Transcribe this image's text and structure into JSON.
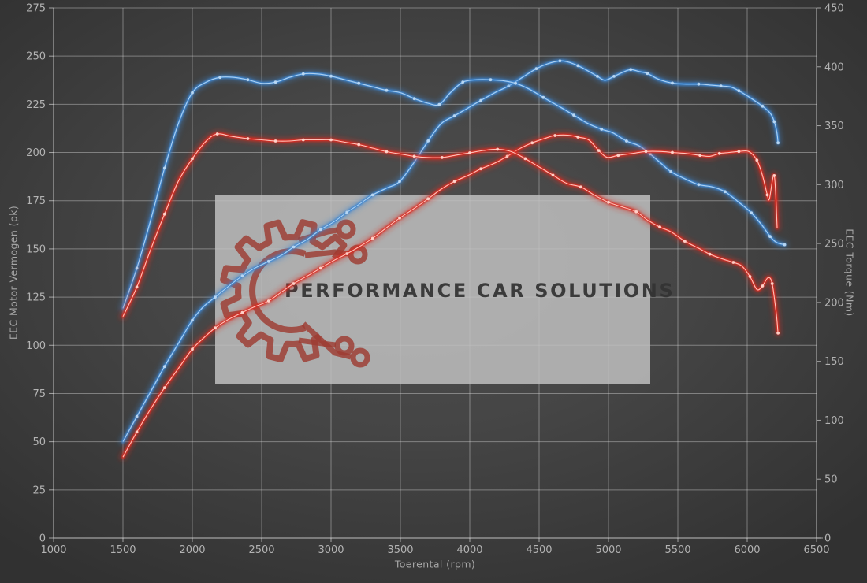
{
  "watermark": {
    "text": "PERFORMANCE CAR SOLUTIONS"
  },
  "colors": {
    "background_center": "#4f4f4f",
    "background_edge": "#313131",
    "grid": "rgba(220,220,220,0.42)",
    "axis_line": "rgba(230,230,230,0.62)",
    "tick_text": "#b3b3b3",
    "axis_title_text": "#a7a7a7",
    "blue_main": "#3d86cf",
    "blue_core": "#b9d8f4",
    "blue_glow": "#2e77c2",
    "red_main": "#d92c22",
    "red_core": "#ffd4cb",
    "red_glow": "#c32018",
    "watermark_bg": "rgba(193,193,193,0.84)",
    "watermark_text": "rgba(51,51,51,0.93)",
    "gear": "rgba(158,60,50,0.82)"
  },
  "chart_data": {
    "type": "line",
    "title": "",
    "grid": true,
    "legend_position": "none",
    "x_axis": {
      "label": "Toerental (rpm)",
      "min": 1000,
      "max": 6500,
      "ticks": [
        1000,
        1500,
        2000,
        2500,
        3000,
        3500,
        4000,
        4500,
        5000,
        5500,
        6000,
        6500
      ]
    },
    "y_left": {
      "label": "EEC Motor Vermogen (pk)",
      "min": 0,
      "max": 275,
      "ticks": [
        0,
        25,
        50,
        75,
        100,
        125,
        150,
        175,
        200,
        225,
        250,
        275
      ]
    },
    "y_right": {
      "label": "EEC Torque (Nm)",
      "min": 0,
      "max": 450,
      "ticks": [
        0,
        50,
        100,
        150,
        200,
        250,
        300,
        350,
        400,
        450
      ]
    },
    "series": [
      {
        "name": "power-blue",
        "axis": "left",
        "unit": "pk",
        "color": "#3d86cf",
        "core": "#b9d8f4",
        "points": [
          [
            1500,
            50
          ],
          [
            1600,
            63
          ],
          [
            1700,
            76
          ],
          [
            1800,
            89
          ],
          [
            1900,
            101
          ],
          [
            2000,
            113
          ],
          [
            2080,
            120
          ],
          [
            2165,
            125
          ],
          [
            2250,
            130
          ],
          [
            2360,
            136
          ],
          [
            2450,
            140
          ],
          [
            2550,
            143.5
          ],
          [
            2650,
            147
          ],
          [
            2730,
            151
          ],
          [
            2830,
            155
          ],
          [
            2925,
            160
          ],
          [
            3020,
            164
          ],
          [
            3115,
            169
          ],
          [
            3200,
            173
          ],
          [
            3300,
            178
          ],
          [
            3400,
            181.5
          ],
          [
            3495,
            185
          ],
          [
            3600,
            195
          ],
          [
            3700,
            206
          ],
          [
            3795,
            215
          ],
          [
            3890,
            219
          ],
          [
            3985,
            223
          ],
          [
            4080,
            227
          ],
          [
            4180,
            231
          ],
          [
            4280,
            234.5
          ],
          [
            4380,
            239
          ],
          [
            4480,
            243.5
          ],
          [
            4560,
            246
          ],
          [
            4650,
            247.5
          ],
          [
            4705,
            247
          ],
          [
            4780,
            245
          ],
          [
            4860,
            242
          ],
          [
            4920,
            239.5
          ],
          [
            4975,
            237.5
          ],
          [
            5040,
            239.5
          ],
          [
            5100,
            241.5
          ],
          [
            5160,
            243
          ],
          [
            5220,
            242
          ],
          [
            5280,
            241
          ],
          [
            5360,
            238
          ],
          [
            5460,
            236
          ],
          [
            5560,
            235.5
          ],
          [
            5650,
            235.5
          ],
          [
            5730,
            235
          ],
          [
            5810,
            234.5
          ],
          [
            5880,
            234
          ],
          [
            5940,
            232
          ],
          [
            6030,
            228
          ],
          [
            6110,
            224
          ],
          [
            6165,
            220.5
          ],
          [
            6195,
            216
          ],
          [
            6215,
            210
          ],
          [
            6222,
            205
          ]
        ]
      },
      {
        "name": "torque-blue",
        "axis": "right",
        "unit": "Nm",
        "color": "#3d86cf",
        "core": "#b9d8f4",
        "points": [
          [
            1500,
            195
          ],
          [
            1600,
            229
          ],
          [
            1700,
            270
          ],
          [
            1800,
            314
          ],
          [
            1900,
            352
          ],
          [
            2000,
            378
          ],
          [
            2100,
            387
          ],
          [
            2200,
            391
          ],
          [
            2300,
            391
          ],
          [
            2400,
            389
          ],
          [
            2500,
            386
          ],
          [
            2600,
            387
          ],
          [
            2700,
            391
          ],
          [
            2800,
            394
          ],
          [
            2900,
            394
          ],
          [
            3000,
            392
          ],
          [
            3100,
            389
          ],
          [
            3200,
            386
          ],
          [
            3300,
            383
          ],
          [
            3400,
            380
          ],
          [
            3500,
            378
          ],
          [
            3600,
            373
          ],
          [
            3700,
            369
          ],
          [
            3780,
            368
          ],
          [
            3860,
            378
          ],
          [
            3950,
            387
          ],
          [
            4050,
            389
          ],
          [
            4150,
            389
          ],
          [
            4250,
            388
          ],
          [
            4330,
            386
          ],
          [
            4430,
            381
          ],
          [
            4530,
            374
          ],
          [
            4650,
            366
          ],
          [
            4750,
            359
          ],
          [
            4850,
            352
          ],
          [
            4950,
            347
          ],
          [
            5030,
            344
          ],
          [
            5130,
            337
          ],
          [
            5220,
            333
          ],
          [
            5300,
            326
          ],
          [
            5380,
            318
          ],
          [
            5450,
            311
          ],
          [
            5550,
            305
          ],
          [
            5650,
            300
          ],
          [
            5750,
            298
          ],
          [
            5840,
            294
          ],
          [
            5940,
            285
          ],
          [
            6030,
            276
          ],
          [
            6110,
            265
          ],
          [
            6165,
            256
          ],
          [
            6210,
            251
          ],
          [
            6270,
            249
          ]
        ]
      },
      {
        "name": "power-red",
        "axis": "left",
        "unit": "pk",
        "color": "#d92c22",
        "core": "#ffd4cb",
        "points": [
          [
            1500,
            42
          ],
          [
            1600,
            55
          ],
          [
            1700,
            67
          ],
          [
            1800,
            78
          ],
          [
            1900,
            88
          ],
          [
            2000,
            98
          ],
          [
            2100,
            105
          ],
          [
            2165,
            109
          ],
          [
            2250,
            113
          ],
          [
            2360,
            117
          ],
          [
            2450,
            120
          ],
          [
            2550,
            123
          ],
          [
            2650,
            128
          ],
          [
            2730,
            132
          ],
          [
            2830,
            136
          ],
          [
            2925,
            140
          ],
          [
            3020,
            144
          ],
          [
            3115,
            147.5
          ],
          [
            3200,
            151
          ],
          [
            3300,
            155.5
          ],
          [
            3400,
            161
          ],
          [
            3495,
            166
          ],
          [
            3600,
            171
          ],
          [
            3700,
            176
          ],
          [
            3795,
            181
          ],
          [
            3890,
            185
          ],
          [
            3985,
            188
          ],
          [
            4080,
            191.5
          ],
          [
            4180,
            194.5
          ],
          [
            4270,
            198
          ],
          [
            4360,
            202
          ],
          [
            4450,
            205
          ],
          [
            4550,
            207.5
          ],
          [
            4615,
            208.8
          ],
          [
            4705,
            209
          ],
          [
            4780,
            208
          ],
          [
            4858,
            206.5
          ],
          [
            4930,
            201
          ],
          [
            4990,
            197.5
          ],
          [
            5070,
            198.5
          ],
          [
            5170,
            199.5
          ],
          [
            5270,
            200.5
          ],
          [
            5380,
            200.5
          ],
          [
            5460,
            200
          ],
          [
            5560,
            199.5
          ],
          [
            5660,
            198.5
          ],
          [
            5730,
            198
          ],
          [
            5800,
            199.5
          ],
          [
            5870,
            200
          ],
          [
            5940,
            200.5
          ],
          [
            6010,
            200.5
          ],
          [
            6070,
            196
          ],
          [
            6110,
            188
          ],
          [
            6145,
            178
          ],
          [
            6160,
            176
          ],
          [
            6195,
            188
          ],
          [
            6216,
            161
          ]
        ]
      },
      {
        "name": "torque-red",
        "axis": "right",
        "unit": "Nm",
        "color": "#d92c22",
        "core": "#ffd4cb",
        "points": [
          [
            1500,
            188
          ],
          [
            1600,
            213
          ],
          [
            1700,
            245
          ],
          [
            1800,
            275
          ],
          [
            1900,
            303
          ],
          [
            2000,
            322
          ],
          [
            2100,
            337
          ],
          [
            2180,
            343
          ],
          [
            2280,
            341
          ],
          [
            2400,
            339
          ],
          [
            2500,
            338
          ],
          [
            2600,
            337
          ],
          [
            2700,
            337
          ],
          [
            2800,
            338
          ],
          [
            2900,
            338
          ],
          [
            3000,
            338
          ],
          [
            3100,
            336
          ],
          [
            3200,
            334
          ],
          [
            3300,
            331
          ],
          [
            3400,
            328
          ],
          [
            3500,
            326
          ],
          [
            3600,
            324
          ],
          [
            3700,
            323
          ],
          [
            3800,
            323
          ],
          [
            3900,
            325
          ],
          [
            4000,
            327
          ],
          [
            4100,
            329
          ],
          [
            4200,
            330
          ],
          [
            4300,
            328
          ],
          [
            4400,
            322
          ],
          [
            4500,
            315
          ],
          [
            4600,
            308
          ],
          [
            4700,
            301
          ],
          [
            4800,
            298
          ],
          [
            4900,
            291
          ],
          [
            5000,
            285
          ],
          [
            5100,
            281
          ],
          [
            5200,
            277
          ],
          [
            5280,
            270
          ],
          [
            5370,
            264
          ],
          [
            5450,
            260
          ],
          [
            5550,
            252
          ],
          [
            5650,
            246
          ],
          [
            5730,
            241
          ],
          [
            5820,
            237
          ],
          [
            5900,
            234
          ],
          [
            5960,
            231
          ],
          [
            6020,
            222
          ],
          [
            6070,
            211
          ],
          [
            6110,
            214
          ],
          [
            6150,
            221
          ],
          [
            6180,
            216
          ],
          [
            6210,
            190
          ],
          [
            6222,
            174
          ]
        ]
      }
    ]
  }
}
